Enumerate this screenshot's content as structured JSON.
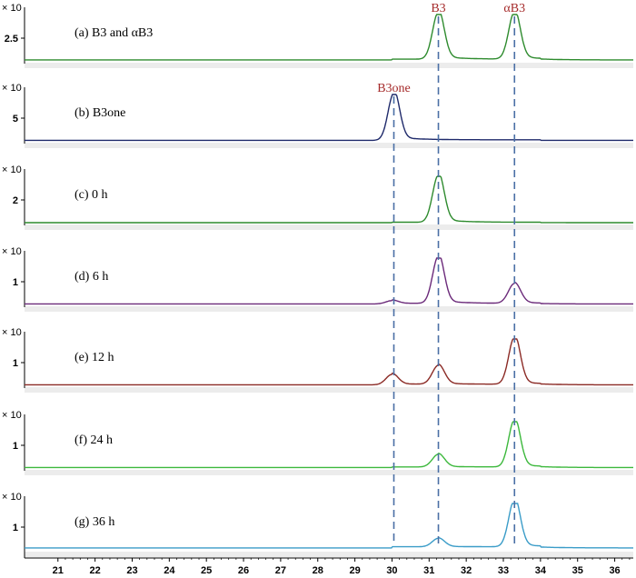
{
  "chart_data": {
    "type": "line",
    "title": "",
    "xlabel": "",
    "ylabel": "",
    "xlim": [
      20.1,
      36.5
    ],
    "x_ticks": [
      "21",
      "22",
      "23",
      "24",
      "25",
      "26",
      "27",
      "28",
      "29",
      "30",
      "31",
      "32",
      "33",
      "34",
      "35",
      "36"
    ],
    "colors": {
      "a": "#2e8b2e",
      "b": "#1f2a6b",
      "c": "#2e8b2e",
      "d": "#6b2a7a",
      "e": "#8b2a25",
      "f": "#3cb83c",
      "g": "#3a9cc8",
      "guide": "#4a6fa5",
      "peak_label": "#a52a2a"
    },
    "panels": [
      {
        "id": "a",
        "label": "(a) B3 and αB3",
        "y_tick": "2.5",
        "mult": "× 10",
        "baseline": 0.04,
        "peaks": [
          {
            "x": 31.25,
            "h": 1.0
          },
          {
            "x": 33.3,
            "h": 1.0
          }
        ]
      },
      {
        "id": "b",
        "label": "(b) B3one",
        "y_tick": "5",
        "mult": "× 10",
        "baseline": 0.03,
        "peaks": [
          {
            "x": 30.05,
            "h": 1.0
          }
        ]
      },
      {
        "id": "c",
        "label": "(c) 0 h",
        "y_tick": "2",
        "mult": "× 10",
        "baseline": 0.02,
        "peaks": [
          {
            "x": 31.25,
            "h": 1.0
          }
        ]
      },
      {
        "id": "d",
        "label": "(d) 6 h",
        "y_tick": "1",
        "mult": "× 10",
        "baseline": 0.03,
        "peaks": [
          {
            "x": 30.0,
            "h": 0.07
          },
          {
            "x": 31.25,
            "h": 1.0
          },
          {
            "x": 33.3,
            "h": 0.42
          }
        ]
      },
      {
        "id": "e",
        "label": "(e)  12 h",
        "y_tick": "1",
        "mult": "× 10",
        "baseline": 0.03,
        "peaks": [
          {
            "x": 30.0,
            "h": 0.22
          },
          {
            "x": 31.25,
            "h": 0.4
          },
          {
            "x": 33.3,
            "h": 1.0
          }
        ]
      },
      {
        "id": "f",
        "label": "(f)  24 h",
        "y_tick": "1",
        "mult": "× 10",
        "baseline": 0.03,
        "peaks": [
          {
            "x": 31.25,
            "h": 0.27
          },
          {
            "x": 33.3,
            "h": 1.0
          }
        ]
      },
      {
        "id": "g",
        "label": "(g) 36 h",
        "y_tick": "1",
        "mult": "× 10",
        "baseline": 0.06,
        "peaks": [
          {
            "x": 31.25,
            "h": 0.18
          },
          {
            "x": 33.3,
            "h": 1.0
          }
        ]
      }
    ],
    "annotations": [
      {
        "text": "B3",
        "x": 31.25
      },
      {
        "text": "αB3",
        "x": 33.3
      },
      {
        "text": "B3one",
        "x": 30.05
      }
    ],
    "guide_lines_x": [
      30.05,
      31.25,
      33.3
    ]
  }
}
